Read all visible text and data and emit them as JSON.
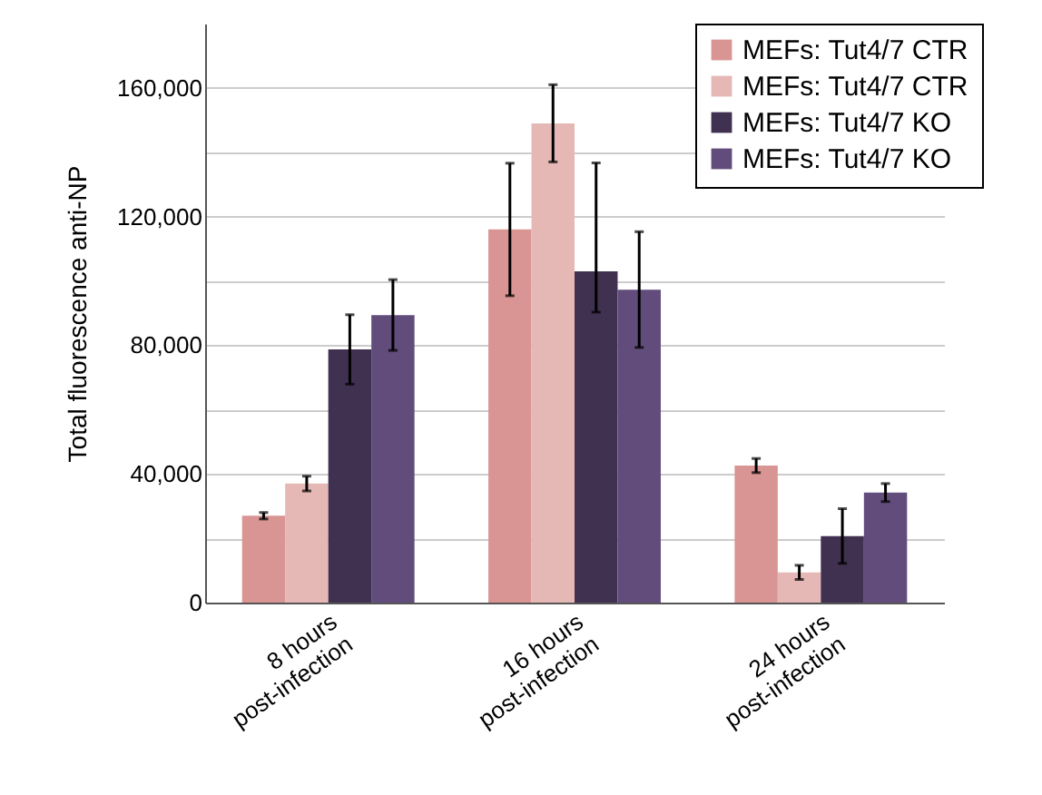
{
  "chart_data": {
    "type": "bar",
    "ylabel": "Total fluorescence anti-NP",
    "categories": [
      "8 hours post-infection",
      "16 hours post-infection",
      "24 hours post-infection"
    ],
    "series": [
      {
        "name": "MEFs: Tut4/7 CTR",
        "color": "#d99593",
        "values": [
          27000,
          116000,
          42600
        ],
        "errors": [
          1000,
          20600,
          2200
        ]
      },
      {
        "name": "MEFs: Tut4/7 CTR",
        "color": "#e6b8b5",
        "values": [
          37000,
          149000,
          9400
        ],
        "errors": [
          2300,
          12000,
          2200
        ]
      },
      {
        "name": "MEFs: Tut4/7 KO",
        "color": "#403150",
        "values": [
          78700,
          103000,
          20700
        ],
        "errors": [
          10800,
          [
            90300,
            136700
          ],
          8500
        ]
      },
      {
        "name": "MEFs: Tut4/7 KO",
        "color": "#614c7b",
        "values": [
          89400,
          97300,
          34200
        ],
        "errors": [
          11000,
          18000,
          2800
        ]
      }
    ],
    "ylim": [
      0,
      180000
    ],
    "yticks": [
      0,
      {
        "value": 20000,
        "label": null
      },
      {
        "value": 40000,
        "label": "40,000"
      },
      {
        "value": 60000,
        "label": null
      },
      {
        "value": 80000,
        "label": "80,000"
      },
      {
        "value": 100000,
        "label": null
      },
      {
        "value": 120000,
        "label": "120,000"
      },
      {
        "value": 140000,
        "label": null
      },
      {
        "value": 160000,
        "label": "160,000"
      }
    ],
    "grid": "y",
    "legend": "top right"
  }
}
